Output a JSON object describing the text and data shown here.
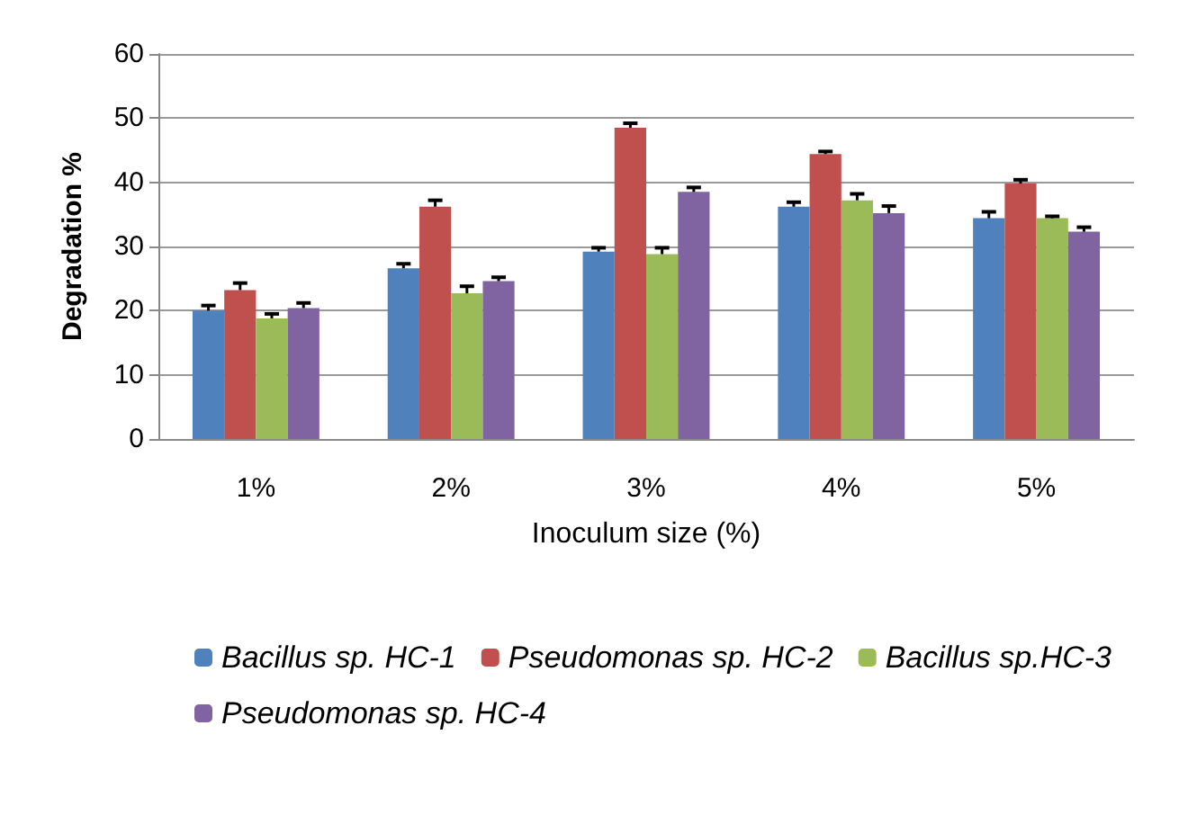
{
  "chart_data": {
    "type": "bar",
    "xlabel": "Inoculum size (%)",
    "ylabel": "Degradation %",
    "categories": [
      "1%",
      "2%",
      "3%",
      "4%",
      "5%"
    ],
    "series": [
      {
        "name": "Bacillus sp. HC-1",
        "color": "#4f81bd",
        "values": [
          20.0,
          26.6,
          29.2,
          36.2,
          34.4
        ],
        "errors": [
          [
            20.0,
            20.8
          ],
          [
            26.6,
            27.3
          ],
          [
            29.2,
            29.8
          ],
          [
            36.2,
            36.9
          ],
          [
            34.4,
            35.4
          ]
        ]
      },
      {
        "name": "Pseudomonas sp. HC-2",
        "color": "#c0504d",
        "values": [
          23.2,
          36.2,
          48.5,
          44.4,
          39.8
        ],
        "errors": [
          [
            23.2,
            24.3
          ],
          [
            36.2,
            37.2
          ],
          [
            48.5,
            49.2
          ],
          [
            44.4,
            44.8
          ],
          [
            39.8,
            40.4
          ]
        ]
      },
      {
        "name": "Bacillus sp.HC-3",
        "color": "#9bbb59",
        "values": [
          18.8,
          22.7,
          28.8,
          37.2,
          34.4
        ],
        "errors": [
          [
            18.8,
            19.5
          ],
          [
            22.7,
            23.8
          ],
          [
            28.8,
            29.8
          ],
          [
            37.2,
            38.2
          ],
          [
            34.4,
            34.7
          ]
        ]
      },
      {
        "name": "Pseudomonas sp. HC-4",
        "color": "#8064a2",
        "values": [
          20.4,
          24.6,
          38.5,
          35.2,
          32.3
        ],
        "errors": [
          [
            20.4,
            21.2
          ],
          [
            24.6,
            25.2
          ],
          [
            38.5,
            39.2
          ],
          [
            35.2,
            36.3
          ],
          [
            32.3,
            33.0
          ]
        ]
      }
    ],
    "ylim": [
      0,
      60
    ],
    "yticks": [
      0,
      10,
      20,
      30,
      40,
      50,
      60
    ],
    "grid": "y",
    "legend": "bottom"
  }
}
